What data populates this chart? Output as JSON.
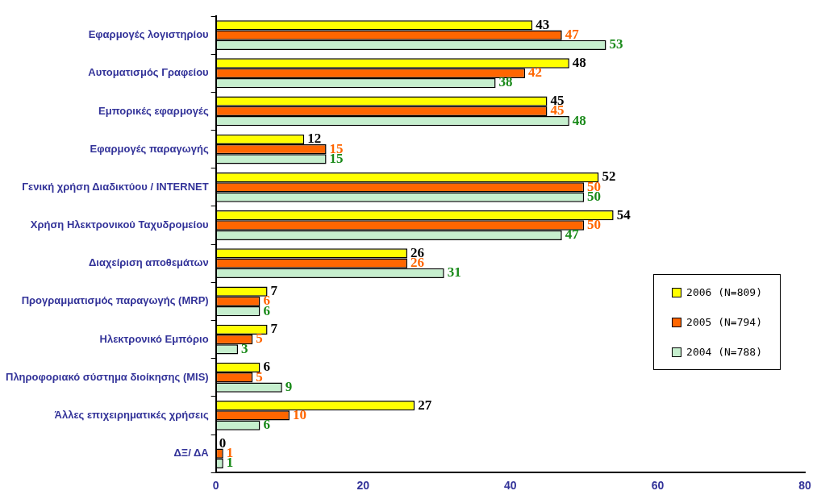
{
  "chart_data": {
    "type": "bar",
    "orientation": "horizontal",
    "categories": [
      "Εφαρμογές λογιστηρίου",
      "Αυτοματισμός Γραφείου",
      "Εμπορικές εφαρμογές",
      "Εφαρμογές παραγωγής",
      "Γενική χρήση Διαδικτύου / INTERNET",
      "Χρήση Ηλεκτρονικού Ταχυδρομείου",
      "Διαχείριση αποθεμάτων",
      "Προγραμματισμός παραγωγής (MRP)",
      "Ηλεκτρονικό Εμπόριο",
      "Πληροφοριακό σύστημα διοίκησης (MIS)",
      "Άλλες επιχειρηματικές χρήσεις",
      "ΔΞ/ ΔΑ"
    ],
    "series": [
      {
        "name": "2006 (N=809)",
        "color": "#ffff00",
        "values": [
          43,
          48,
          45,
          12,
          52,
          54,
          26,
          7,
          7,
          6,
          27,
          0
        ]
      },
      {
        "name": "2005 (N=794)",
        "color": "#ff6600",
        "values": [
          47,
          42,
          45,
          15,
          50,
          50,
          26,
          6,
          5,
          5,
          10,
          1
        ]
      },
      {
        "name": "2004 (N=788)",
        "color": "#c6efce",
        "values": [
          53,
          38,
          48,
          15,
          50,
          47,
          31,
          6,
          3,
          9,
          6,
          1
        ]
      }
    ],
    "xlim": [
      0,
      80
    ],
    "xticks": [
      0,
      20,
      40,
      60,
      80
    ],
    "grid": false,
    "legend": "right",
    "data_labels": true
  }
}
